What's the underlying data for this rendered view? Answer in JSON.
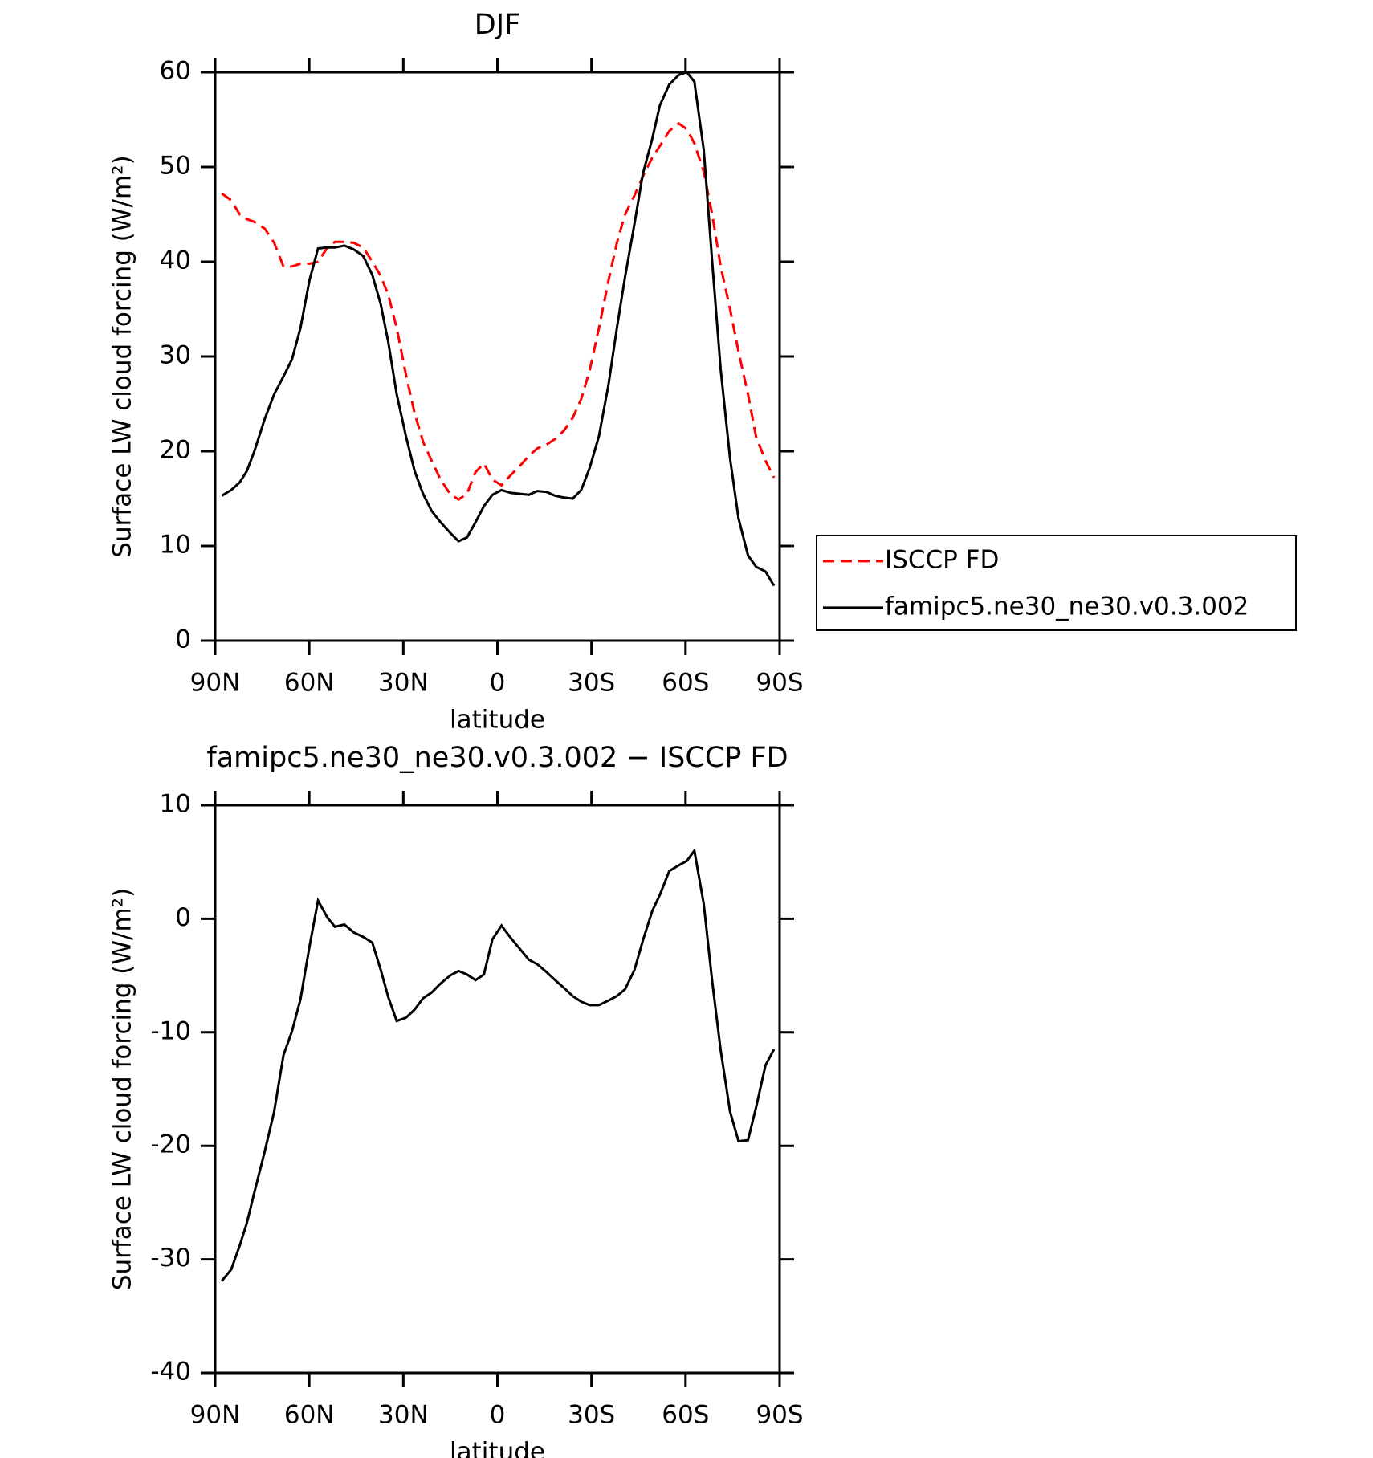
{
  "chart_data": [
    {
      "type": "line",
      "title": "DJF",
      "xlabel": "latitude",
      "ylabel": "Surface LW cloud forcing (W/m²)",
      "x": [
        87.9,
        84.9,
        82.2,
        79.9,
        77.5,
        74.2,
        71.2,
        68.2,
        65.5,
        62.8,
        59.9,
        57.2,
        54.2,
        51.8,
        48.8,
        45.8,
        42.8,
        39.9,
        37.2,
        34.8,
        32.1,
        29.1,
        26.4,
        23.7,
        21,
        18.1,
        15.1,
        12.4,
        9.7,
        7,
        4.3,
        1.6,
        -1.3,
        -4.3,
        -7.3,
        -10,
        -12.7,
        -15.7,
        -18.4,
        -21.3,
        -24,
        -26.7,
        -29.4,
        -32.4,
        -35.4,
        -38.1,
        -40.7,
        -43.7,
        -46.4,
        -49.4,
        -51.8,
        -54.8,
        -57.8,
        -60.4,
        -62.8,
        -65.8,
        -68.5,
        -71.2,
        -74.2,
        -76.9,
        -79.9,
        -82.5,
        -85.5,
        -88.2
      ],
      "series": [
        {
          "name": "ISCCP FD",
          "color": "#ff0000",
          "dash": true,
          "values": [
            47.2,
            46.5,
            45,
            44.5,
            44.2,
            43.5,
            42,
            39.5,
            39.5,
            39.8,
            39.8,
            40,
            41.5,
            42.1,
            42.1,
            42,
            41.5,
            40,
            38.5,
            36.5,
            33,
            28,
            24,
            21,
            19,
            17,
            15.5,
            14.9,
            15.5,
            17.8,
            18.7,
            17,
            16.4,
            17.5,
            18.5,
            19.5,
            20.3,
            20.7,
            21.3,
            22.2,
            23.5,
            25.5,
            28.5,
            33,
            38,
            42,
            45,
            47,
            49,
            51,
            52.2,
            53.8,
            54.6,
            54,
            52.5,
            49.5,
            45,
            39.5,
            35,
            30.5,
            26,
            21.5,
            19,
            17.2
          ]
        },
        {
          "name": "famipc5.ne30_ne30.v0.3.002",
          "color": "#000000",
          "dash": false,
          "values": [
            15.3,
            15.9,
            16.7,
            17.9,
            20,
            23.4,
            26,
            27.9,
            29.7,
            33,
            38.1,
            41.4,
            41.5,
            41.5,
            41.7,
            41.3,
            40.6,
            38.6,
            35.5,
            31.5,
            26,
            21.5,
            17.9,
            15.5,
            13.7,
            12.5,
            11.4,
            10.5,
            10.9,
            12.5,
            14.2,
            15.4,
            15.9,
            15.6,
            15.5,
            15.4,
            15.8,
            15.7,
            15.3,
            15.1,
            15,
            15.9,
            18.2,
            21.6,
            27,
            33,
            38.4,
            44,
            49.3,
            53,
            56.5,
            58.7,
            59.7,
            60,
            59,
            51.8,
            40,
            28.6,
            19.2,
            12.9,
            9,
            7.8,
            7.3,
            5.8
          ]
        }
      ],
      "xlim": [
        90,
        -90
      ],
      "xticks": [
        {
          "value": 90,
          "label": "90N"
        },
        {
          "value": 60,
          "label": "60N"
        },
        {
          "value": 30,
          "label": "30N"
        },
        0,
        {
          "value": -30,
          "label": "30S"
        },
        {
          "value": -60,
          "label": "60S"
        },
        {
          "value": -90,
          "label": "90S"
        }
      ],
      "ylim": [
        0,
        60
      ],
      "yticks": [
        0,
        10,
        20,
        30,
        40,
        50,
        60
      ],
      "legend": "right"
    },
    {
      "type": "line",
      "title": "famipc5.ne30_ne30.v0.3.002 − ISCCP FD",
      "xlabel": "latitude",
      "ylabel": "Surface LW cloud forcing (W/m²)",
      "x": [
        87.9,
        84.9,
        82.2,
        79.9,
        77.5,
        74.2,
        71.2,
        68.2,
        65.5,
        62.8,
        59.9,
        57.2,
        54.2,
        51.8,
        48.8,
        45.8,
        42.8,
        39.9,
        37.2,
        34.8,
        32.1,
        29.1,
        26.4,
        23.7,
        21,
        18.1,
        15.1,
        12.4,
        9.7,
        7,
        4.3,
        1.6,
        -1.3,
        -4.3,
        -7.3,
        -10,
        -12.7,
        -15.7,
        -18.4,
        -21.3,
        -24,
        -26.7,
        -29.4,
        -32.4,
        -35.4,
        -38.1,
        -40.7,
        -43.7,
        -46.4,
        -49.4,
        -51.8,
        -54.8,
        -57.8,
        -60.4,
        -62.8,
        -65.8,
        -68.5,
        -71.2,
        -74.2,
        -76.9,
        -79.9,
        -82.5,
        -85.5,
        -88.2
      ],
      "series": [
        {
          "color": "#000000",
          "dash": false,
          "values": [
            -31.9,
            -30.9,
            -28.8,
            -26.8,
            -24.1,
            -20.5,
            -17,
            -12,
            -9.9,
            -7.1,
            -2.4,
            1.6,
            0.1,
            -0.7,
            -0.5,
            -1.2,
            -1.6,
            -2.1,
            -4.5,
            -6.9,
            -9,
            -8.7,
            -8,
            -7,
            -6.5,
            -5.7,
            -5,
            -4.6,
            -4.9,
            -5.4,
            -4.9,
            -1.8,
            -0.6,
            -1.7,
            -2.7,
            -3.6,
            -4,
            -4.7,
            -5.4,
            -6.1,
            -6.8,
            -7.3,
            -7.6,
            -7.6,
            -7.2,
            -6.8,
            -6.2,
            -4.5,
            -1.9,
            0.7,
            2.1,
            4.2,
            4.7,
            5.1,
            6,
            1.3,
            -5.5,
            -11.6,
            -17,
            -19.6,
            -19.5,
            -16.6,
            -12.9,
            -11.5
          ]
        }
      ],
      "xlim": [
        90,
        -90
      ],
      "xticks": [
        {
          "value": 90,
          "label": "90N"
        },
        {
          "value": 60,
          "label": "60N"
        },
        {
          "value": 30,
          "label": "30N"
        },
        0,
        {
          "value": -30,
          "label": "30S"
        },
        {
          "value": -60,
          "label": "60S"
        },
        {
          "value": -90,
          "label": "90S"
        }
      ],
      "ylim": [
        -40,
        10
      ],
      "yticks": [
        -40,
        -30,
        -20,
        -10,
        0,
        10
      ]
    }
  ]
}
